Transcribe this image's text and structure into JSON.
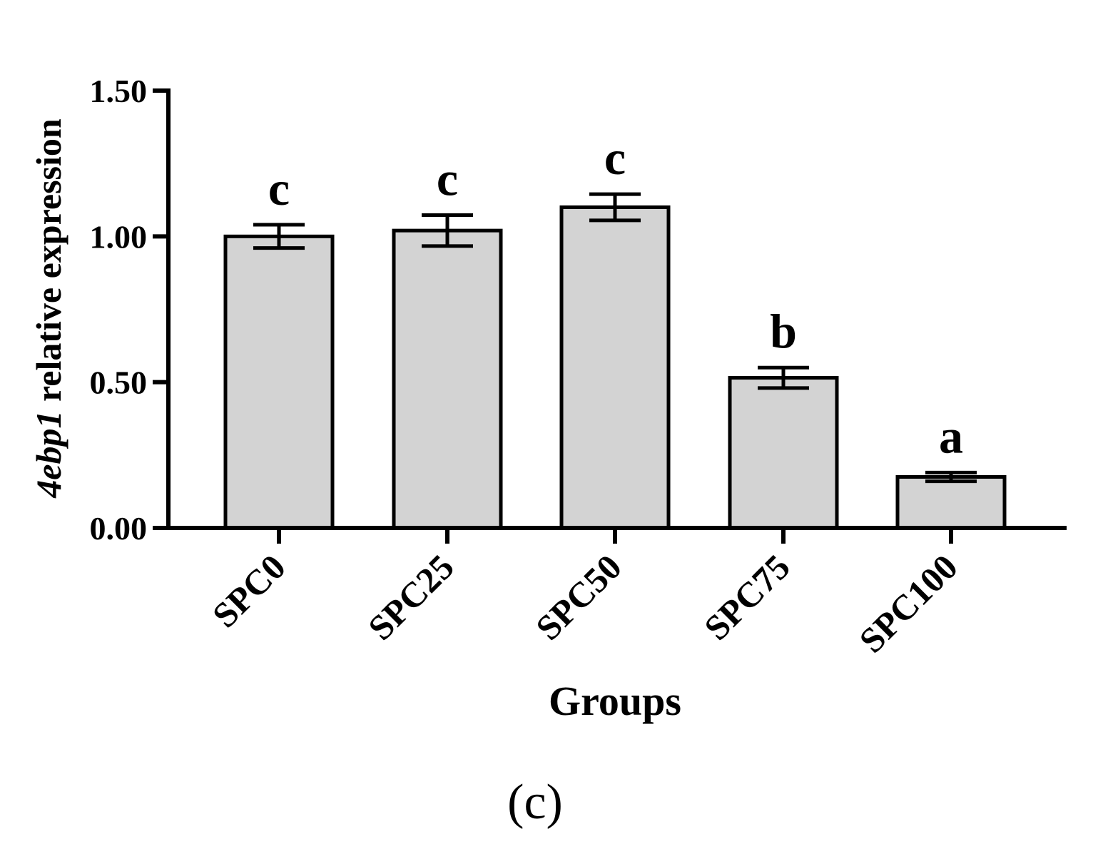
{
  "chart_data": {
    "type": "bar",
    "categories": [
      "SPC0",
      "SPC25",
      "SPC50",
      "SPC75",
      "SPC100"
    ],
    "values": [
      1.0,
      1.02,
      1.1,
      0.515,
      0.175
    ],
    "errors": [
      0.04,
      0.053,
      0.045,
      0.035,
      0.015
    ],
    "significance_letters": [
      "c",
      "c",
      "c",
      "b",
      "a"
    ],
    "ylim": [
      0,
      1.5
    ],
    "yticks": [
      "0.00",
      "0.50",
      "1.00",
      "1.50"
    ],
    "ytick_values": [
      0,
      0.5,
      1.0,
      1.5
    ],
    "ylabel_gene": "4ebp1",
    "ylabel_rest": " relative expression",
    "xlabel": "Groups",
    "bar_color": "#d3d3d3",
    "grid": false,
    "legend": "none"
  },
  "panel_label": "(c)"
}
